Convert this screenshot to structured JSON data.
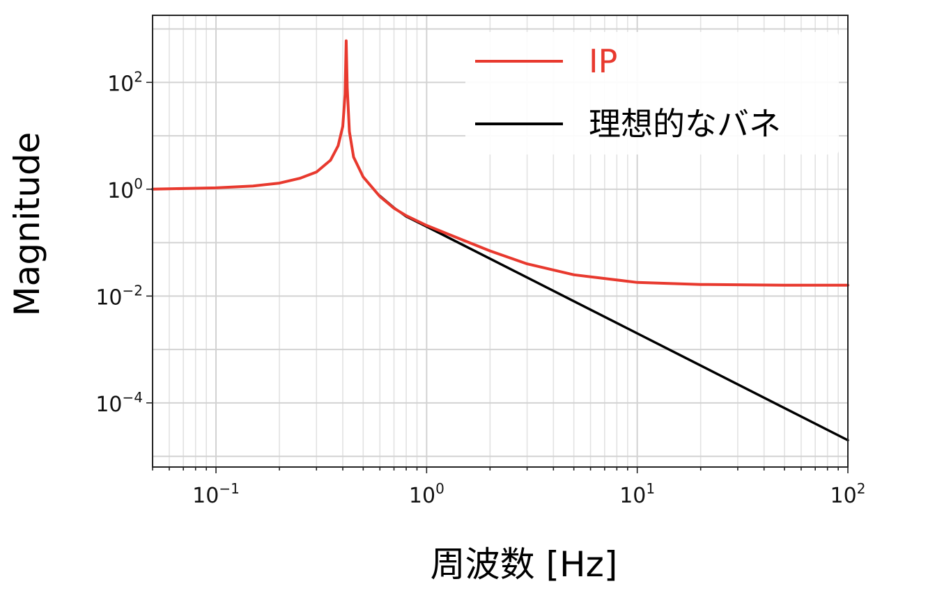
{
  "chart_data": {
    "type": "line",
    "title": "",
    "xlabel": "周波数 [Hz]",
    "ylabel": "Magnitude",
    "xscale": "log",
    "yscale": "log",
    "xlim": [
      0.05,
      100
    ],
    "ylim": [
      6.3e-06,
      1800
    ],
    "grid": true,
    "legend_position": "top-right",
    "x_ticks": [
      {
        "value": 0.1,
        "base": "10",
        "exp": "−1"
      },
      {
        "value": 1,
        "base": "10",
        "exp": "0"
      },
      {
        "value": 10,
        "base": "10",
        "exp": "1"
      },
      {
        "value": 100,
        "base": "10",
        "exp": "2"
      }
    ],
    "y_ticks": [
      {
        "value": 0.0001,
        "base": "10",
        "exp": "−4"
      },
      {
        "value": 0.01,
        "base": "10",
        "exp": "−2"
      },
      {
        "value": 1,
        "base": "10",
        "exp": "0"
      },
      {
        "value": 100,
        "base": "10",
        "exp": "2"
      }
    ],
    "series": [
      {
        "name": "IP",
        "color": "#e8392e",
        "x": [
          0.05,
          0.08,
          0.1,
          0.15,
          0.2,
          0.25,
          0.3,
          0.35,
          0.38,
          0.4,
          0.41,
          0.415,
          0.42,
          0.43,
          0.45,
          0.5,
          0.6,
          0.7,
          0.8,
          1,
          1.5,
          2,
          3,
          5,
          10,
          20,
          50,
          100
        ],
        "y": [
          1.0,
          1.04,
          1.06,
          1.15,
          1.3,
          1.6,
          2.1,
          3.5,
          6.5,
          15,
          60,
          600,
          80,
          12,
          4.0,
          1.7,
          0.73,
          0.44,
          0.32,
          0.21,
          0.11,
          0.07,
          0.04,
          0.025,
          0.018,
          0.0165,
          0.016,
          0.016
        ]
      },
      {
        "name": "理想的なバネ",
        "color": "#000000",
        "x": [
          0.6,
          0.7,
          0.8,
          1,
          2,
          5,
          10,
          20,
          50,
          100
        ],
        "y": [
          0.75,
          0.45,
          0.31,
          0.2,
          0.05,
          0.008,
          0.002,
          0.0005,
          8e-05,
          2e-05
        ]
      }
    ]
  }
}
